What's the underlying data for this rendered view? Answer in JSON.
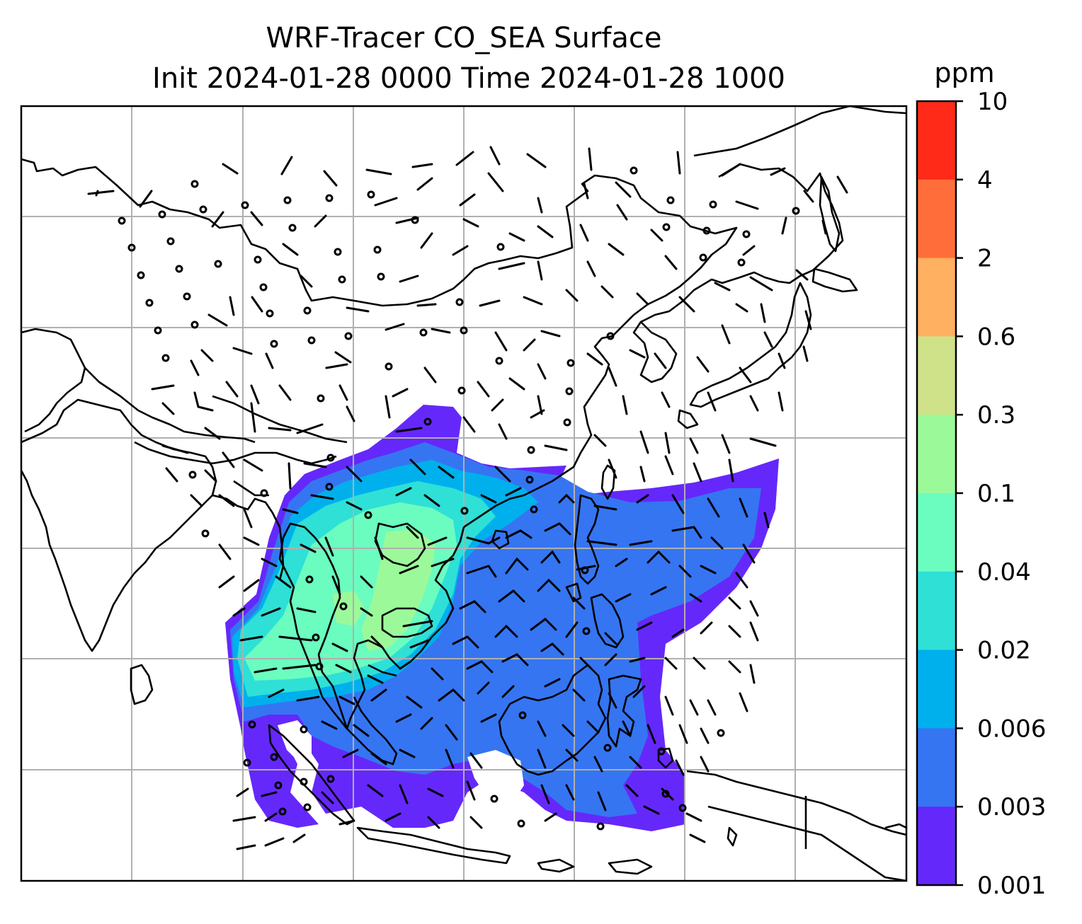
{
  "title": {
    "line1": "WRF-Tracer CO_SEA Surface",
    "line2": "Init 2024-01-28 0000 Time 2024-01-28 1000"
  },
  "colorbar": {
    "units": "ppm",
    "ticks": [
      "10",
      "4",
      "2",
      "0.6",
      "0.3",
      "0.1",
      "0.04",
      "0.02",
      "0.006",
      "0.003",
      "0.001"
    ],
    "bands_top_to_bottom": [
      {
        "range": "4–10",
        "color": "#ff2a17"
      },
      {
        "range": "2–4",
        "color": "#ff6e3a"
      },
      {
        "range": "0.6–2",
        "color": "#ffb060"
      },
      {
        "range": "0.3–0.6",
        "color": "#cfe28a"
      },
      {
        "range": "0.1–0.3",
        "color": "#9cf99a"
      },
      {
        "range": "0.04–0.1",
        "color": "#6bfcc0"
      },
      {
        "range": "0.02–0.04",
        "color": "#2ee0d6"
      },
      {
        "range": "0.006–0.02",
        "color": "#00b0ec"
      },
      {
        "range": "0.003–0.006",
        "color": "#3575f2"
      },
      {
        "range": "0.001–0.003",
        "color": "#6528fa"
      }
    ]
  },
  "map": {
    "region": "Asia / Southeast Asia",
    "gridlines": true,
    "gridline_color": "#b0b0b0",
    "coastline_color": "#000000",
    "wind_barbs": true
  }
}
